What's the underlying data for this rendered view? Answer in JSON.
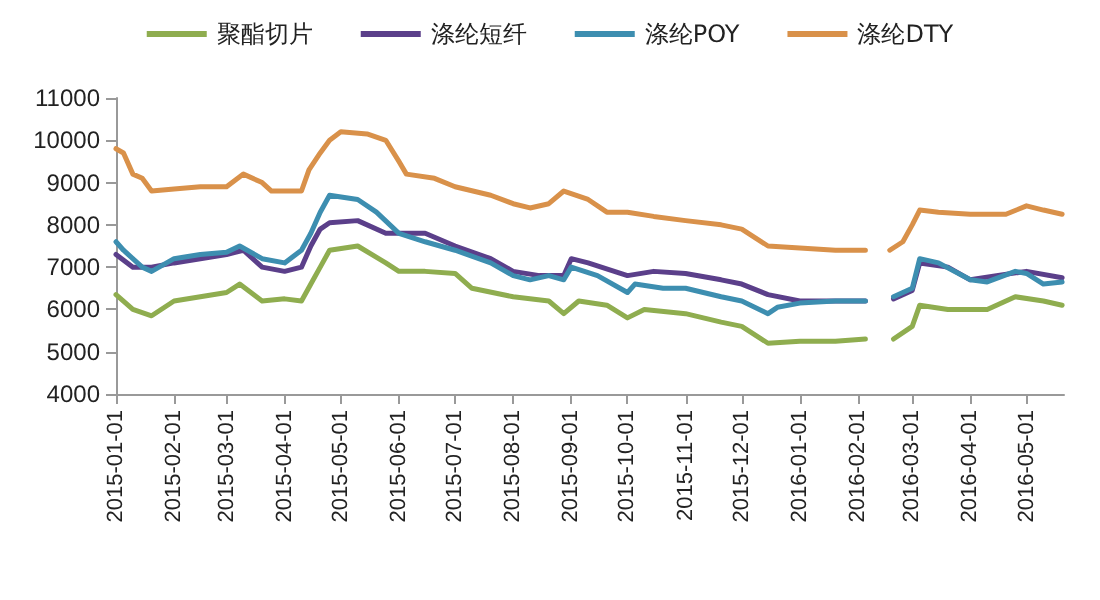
{
  "chart_data": {
    "type": "line",
    "ylim": [
      4000,
      11000
    ],
    "yticks": [
      4000,
      5000,
      6000,
      7000,
      8000,
      9000,
      10000,
      11000
    ],
    "xlim": [
      "2015-01-01",
      "2016-05-21"
    ],
    "xticks": [
      "2015-01-01",
      "2015-02-01",
      "2015-03-01",
      "2015-04-01",
      "2015-05-01",
      "2015-06-01",
      "2015-07-01",
      "2015-08-01",
      "2015-09-01",
      "2015-10-01",
      "2015-11-01",
      "2015-12-01",
      "2016-01-01",
      "2016-02-01",
      "2016-03-01",
      "2016-04-01",
      "2016-05-01"
    ],
    "grid": false,
    "legend": "top",
    "marker": "none",
    "line_style": "solid",
    "series": [
      {
        "name": "聚酯切片",
        "color": "#8fad4f",
        "x": [
          "2015-01-01",
          "2015-01-10",
          "2015-01-20",
          "2015-02-01",
          "2015-02-15",
          "2015-03-01",
          "2015-03-08",
          "2015-03-20",
          "2015-04-01",
          "2015-04-10",
          "2015-04-15",
          "2015-04-20",
          "2015-04-25",
          "2015-05-10",
          "2015-05-25",
          "2015-06-01",
          "2015-06-15",
          "2015-07-01",
          "2015-07-10",
          "2015-08-01",
          "2015-08-20",
          "2015-08-28",
          "2015-09-05",
          "2015-09-20",
          "2015-10-01",
          "2015-10-10",
          "2015-11-01",
          "2015-11-20",
          "2015-12-01",
          "2015-12-15",
          "2016-01-01",
          "2016-01-20",
          "2016-02-05",
          "2016-02-10",
          "2016-02-20",
          "2016-03-01",
          "2016-03-05",
          "2016-03-20",
          "2016-04-10",
          "2016-04-25",
          "2016-05-10",
          "2016-05-20"
        ],
        "values": [
          6350,
          6000,
          5850,
          6200,
          6300,
          6400,
          6600,
          6200,
          6250,
          6200,
          6600,
          7000,
          7400,
          7500,
          7100,
          6900,
          6900,
          6850,
          6500,
          6300,
          6200,
          5900,
          6200,
          6100,
          5800,
          6000,
          5900,
          5700,
          5600,
          5200,
          5250,
          5250,
          5300,
          null,
          5300,
          5600,
          6100,
          6000,
          6000,
          6300,
          6200,
          6100
        ]
      },
      {
        "name": "涤纶短纤",
        "color": "#5b3f8a",
        "x": [
          "2015-01-01",
          "2015-01-10",
          "2015-01-20",
          "2015-02-01",
          "2015-02-15",
          "2015-03-01",
          "2015-03-10",
          "2015-03-20",
          "2015-04-01",
          "2015-04-10",
          "2015-04-15",
          "2015-04-20",
          "2015-04-25",
          "2015-05-10",
          "2015-05-25",
          "2015-06-15",
          "2015-07-01",
          "2015-07-20",
          "2015-08-01",
          "2015-08-15",
          "2015-08-28",
          "2015-09-01",
          "2015-09-10",
          "2015-10-01",
          "2015-10-15",
          "2015-11-01",
          "2015-11-20",
          "2015-12-01",
          "2015-12-15",
          "2016-01-01",
          "2016-02-05",
          "2016-02-10",
          "2016-02-20",
          "2016-03-01",
          "2016-03-05",
          "2016-03-20",
          "2016-04-01",
          "2016-04-15",
          "2016-05-01",
          "2016-05-20"
        ],
        "values": [
          7300,
          7000,
          7000,
          7100,
          7200,
          7300,
          7400,
          7000,
          6900,
          7000,
          7500,
          7900,
          8050,
          8100,
          7800,
          7800,
          7500,
          7200,
          6900,
          6800,
          6800,
          7200,
          7100,
          6800,
          6900,
          6850,
          6700,
          6600,
          6350,
          6200,
          6200,
          null,
          6250,
          6450,
          7100,
          7000,
          6700,
          6800,
          6900,
          6750
        ]
      },
      {
        "name": "涤纶POY",
        "color": "#3d8eb0",
        "x": [
          "2015-01-01",
          "2015-01-05",
          "2015-01-15",
          "2015-01-20",
          "2015-02-01",
          "2015-02-15",
          "2015-03-01",
          "2015-03-08",
          "2015-03-20",
          "2015-04-01",
          "2015-04-10",
          "2015-04-15",
          "2015-04-20",
          "2015-04-25",
          "2015-05-10",
          "2015-05-20",
          "2015-06-01",
          "2015-06-15",
          "2015-07-01",
          "2015-07-20",
          "2015-08-01",
          "2015-08-10",
          "2015-08-20",
          "2015-08-28",
          "2015-09-01",
          "2015-09-15",
          "2015-10-01",
          "2015-10-05",
          "2015-10-20",
          "2015-11-01",
          "2015-11-20",
          "2015-12-01",
          "2015-12-15",
          "2015-12-20",
          "2016-01-01",
          "2016-01-20",
          "2016-02-05",
          "2016-02-10",
          "2016-02-20",
          "2016-03-01",
          "2016-03-05",
          "2016-03-15",
          "2016-04-01",
          "2016-04-10",
          "2016-04-25",
          "2016-05-01",
          "2016-05-10",
          "2016-05-20"
        ],
        "values": [
          7600,
          7400,
          7000,
          6900,
          7200,
          7300,
          7350,
          7500,
          7200,
          7100,
          7400,
          7800,
          8300,
          8700,
          8600,
          8300,
          7800,
          7600,
          7400,
          7100,
          6800,
          6700,
          6800,
          6700,
          7000,
          6800,
          6400,
          6600,
          6500,
          6500,
          6300,
          6200,
          5900,
          6050,
          6150,
          6200,
          6200,
          null,
          6300,
          6500,
          7200,
          7100,
          6700,
          6650,
          6900,
          6850,
          6600,
          6650
        ]
      },
      {
        "name": "涤纶DTY",
        "color": "#d9914a",
        "x": [
          "2015-01-01",
          "2015-01-05",
          "2015-01-10",
          "2015-01-15",
          "2015-01-20",
          "2015-02-01",
          "2015-02-15",
          "2015-03-01",
          "2015-03-10",
          "2015-03-20",
          "2015-03-25",
          "2015-04-10",
          "2015-04-14",
          "2015-04-20",
          "2015-04-25",
          "2015-05-01",
          "2015-05-15",
          "2015-05-25",
          "2015-06-01",
          "2015-06-05",
          "2015-06-20",
          "2015-07-01",
          "2015-07-20",
          "2015-08-01",
          "2015-08-10",
          "2015-08-20",
          "2015-08-28",
          "2015-09-10",
          "2015-09-20",
          "2015-10-01",
          "2015-10-15",
          "2015-11-01",
          "2015-11-20",
          "2015-12-01",
          "2015-12-15",
          "2016-01-01",
          "2016-01-20",
          "2016-02-05",
          "2016-02-10",
          "2016-02-18",
          "2016-02-25",
          "2016-03-01",
          "2016-03-05",
          "2016-03-15",
          "2016-04-01",
          "2016-04-20",
          "2016-05-01",
          "2016-05-10",
          "2016-05-20"
        ],
        "values": [
          9800,
          9700,
          9200,
          9100,
          8800,
          8850,
          8900,
          8900,
          9200,
          9000,
          8800,
          8800,
          9300,
          9700,
          10000,
          10200,
          10150,
          10000,
          9500,
          9200,
          9100,
          8900,
          8700,
          8500,
          8400,
          8500,
          8800,
          8600,
          8300,
          8300,
          8200,
          8100,
          8000,
          7900,
          7500,
          7450,
          7400,
          7400,
          null,
          7400,
          7600,
          8000,
          8350,
          8300,
          8250,
          8250,
          8450,
          8350,
          8250
        ]
      }
    ]
  }
}
